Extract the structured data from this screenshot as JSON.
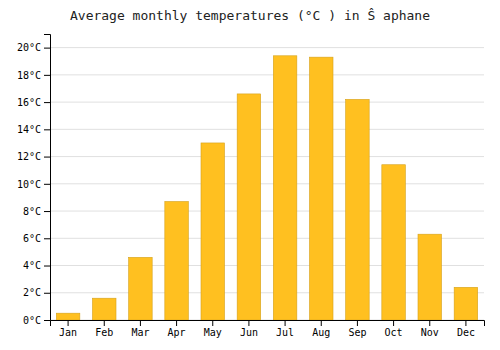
{
  "chart_data": {
    "type": "bar",
    "title": "Average monthly temperatures (°C ) in Ŝ aphane",
    "categories": [
      "Jan",
      "Feb",
      "Mar",
      "Apr",
      "May",
      "Jun",
      "Jul",
      "Aug",
      "Sep",
      "Oct",
      "Nov",
      "Dec"
    ],
    "values": [
      0.5,
      1.6,
      4.6,
      8.7,
      13.0,
      16.6,
      19.4,
      19.3,
      16.2,
      11.4,
      6.3,
      2.4
    ],
    "color": "#FFC020",
    "ylim": [
      0,
      21
    ],
    "yticks": [
      {
        "value": 0,
        "label": "0°C"
      },
      {
        "value": 2,
        "label": "2°C"
      },
      {
        "value": 4,
        "label": "4°C"
      },
      {
        "value": 6,
        "label": "6°C"
      },
      {
        "value": 8,
        "label": "8°C"
      },
      {
        "value": 10,
        "label": "10°C"
      },
      {
        "value": 12,
        "label": "12°C"
      },
      {
        "value": 14,
        "label": "14°C"
      },
      {
        "value": 16,
        "label": "16°C"
      },
      {
        "value": 18,
        "label": "18°C"
      },
      {
        "value": 20,
        "label": "20°C"
      }
    ],
    "grid": true
  }
}
